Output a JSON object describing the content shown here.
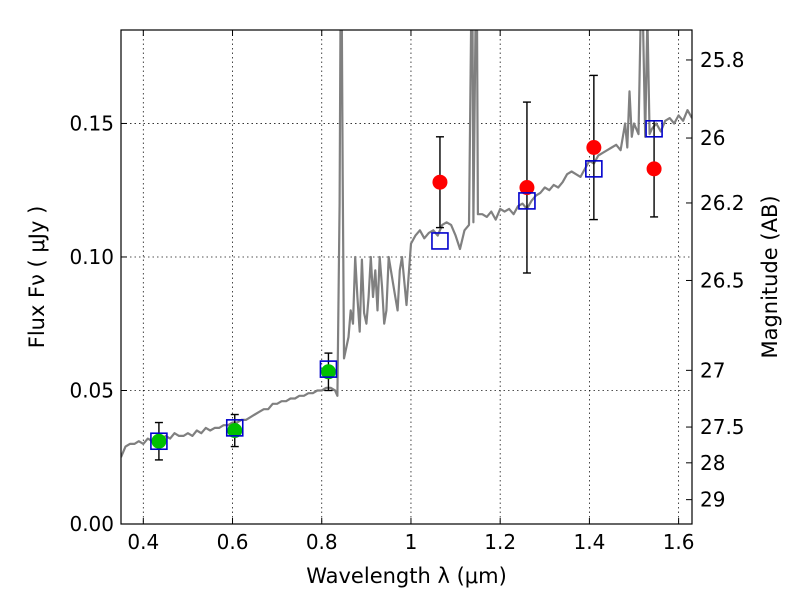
{
  "chart_data": {
    "type": "scatter",
    "xlabel": "Wavelength  λ (μm)",
    "ylabel": "Flux  Fν  ( μJy )",
    "ylabel2": "Magnitude (AB)",
    "xlim": [
      0.35,
      1.63
    ],
    "ylim": [
      0.0,
      0.185
    ],
    "grid": true,
    "x_ticks": [
      {
        "value": 0.4,
        "label": "0.4"
      },
      {
        "value": 0.6,
        "label": "0.6"
      },
      {
        "value": 0.8,
        "label": "0.8"
      },
      {
        "value": 1.0,
        "label": "1"
      },
      {
        "value": 1.2,
        "label": "1.2"
      },
      {
        "value": 1.4,
        "label": "1.4"
      },
      {
        "value": 1.6,
        "label": "1.6"
      }
    ],
    "y_ticks": [
      {
        "value": 0.0,
        "label": "0.00"
      },
      {
        "value": 0.05,
        "label": "0.05"
      },
      {
        "value": 0.1,
        "label": "0.10"
      },
      {
        "value": 0.15,
        "label": "0.15"
      }
    ],
    "mag_ticks": [
      {
        "value": 25.8,
        "label": "25.8"
      },
      {
        "value": 26.0,
        "label": "26"
      },
      {
        "value": 26.2,
        "label": "26.2"
      },
      {
        "value": 26.5,
        "label": "26.5"
      },
      {
        "value": 27.0,
        "label": "27"
      },
      {
        "value": 27.5,
        "label": "27.5"
      },
      {
        "value": 28.0,
        "label": "28"
      },
      {
        "value": 29.0,
        "label": "29"
      }
    ],
    "series": [
      {
        "kind": "spectrum",
        "color": "#808080",
        "points": [
          [
            0.35,
            0.025
          ],
          [
            0.36,
            0.029
          ],
          [
            0.37,
            0.03
          ],
          [
            0.38,
            0.03
          ],
          [
            0.39,
            0.031
          ],
          [
            0.4,
            0.03
          ],
          [
            0.41,
            0.032
          ],
          [
            0.42,
            0.031
          ],
          [
            0.43,
            0.032
          ],
          [
            0.44,
            0.031
          ],
          [
            0.45,
            0.033
          ],
          [
            0.46,
            0.032
          ],
          [
            0.47,
            0.034
          ],
          [
            0.48,
            0.033
          ],
          [
            0.49,
            0.033
          ],
          [
            0.5,
            0.034
          ],
          [
            0.51,
            0.033
          ],
          [
            0.52,
            0.035
          ],
          [
            0.53,
            0.034
          ],
          [
            0.54,
            0.036
          ],
          [
            0.55,
            0.035
          ],
          [
            0.56,
            0.036
          ],
          [
            0.57,
            0.036
          ],
          [
            0.58,
            0.037
          ],
          [
            0.59,
            0.037
          ],
          [
            0.6,
            0.038
          ],
          [
            0.61,
            0.038
          ],
          [
            0.62,
            0.039
          ],
          [
            0.63,
            0.039
          ],
          [
            0.64,
            0.04
          ],
          [
            0.65,
            0.041
          ],
          [
            0.66,
            0.042
          ],
          [
            0.67,
            0.043
          ],
          [
            0.68,
            0.043
          ],
          [
            0.69,
            0.045
          ],
          [
            0.7,
            0.045
          ],
          [
            0.71,
            0.046
          ],
          [
            0.72,
            0.046
          ],
          [
            0.73,
            0.047
          ],
          [
            0.74,
            0.047
          ],
          [
            0.75,
            0.048
          ],
          [
            0.76,
            0.048
          ],
          [
            0.77,
            0.049
          ],
          [
            0.78,
            0.049
          ],
          [
            0.79,
            0.05
          ],
          [
            0.8,
            0.05
          ],
          [
            0.81,
            0.051
          ],
          [
            0.82,
            0.051
          ],
          [
            0.83,
            0.05
          ],
          [
            0.835,
            0.048
          ],
          [
            0.84,
            0.12
          ],
          [
            0.842,
            0.19
          ],
          [
            0.845,
            0.19
          ],
          [
            0.847,
            0.13
          ],
          [
            0.85,
            0.062
          ],
          [
            0.86,
            0.07
          ],
          [
            0.865,
            0.08
          ],
          [
            0.87,
            0.075
          ],
          [
            0.875,
            0.1
          ],
          [
            0.88,
            0.085
          ],
          [
            0.885,
            0.072
          ],
          [
            0.89,
            0.099
          ],
          [
            0.895,
            0.079
          ],
          [
            0.9,
            0.075
          ],
          [
            0.905,
            0.085
          ],
          [
            0.91,
            0.1
          ],
          [
            0.915,
            0.085
          ],
          [
            0.92,
            0.095
          ],
          [
            0.925,
            0.08
          ],
          [
            0.93,
            0.1
          ],
          [
            0.935,
            0.089
          ],
          [
            0.94,
            0.075
          ],
          [
            0.945,
            0.08
          ],
          [
            0.95,
            0.1
          ],
          [
            0.955,
            0.095
          ],
          [
            0.96,
            0.09
          ],
          [
            0.965,
            0.085
          ],
          [
            0.97,
            0.08
          ],
          [
            0.975,
            0.095
          ],
          [
            0.98,
            0.1
          ],
          [
            0.99,
            0.082
          ],
          [
            1.0,
            0.105
          ],
          [
            1.01,
            0.108
          ],
          [
            1.02,
            0.11
          ],
          [
            1.03,
            0.107
          ],
          [
            1.04,
            0.109
          ],
          [
            1.05,
            0.11
          ],
          [
            1.06,
            0.108
          ],
          [
            1.07,
            0.112
          ],
          [
            1.08,
            0.113
          ],
          [
            1.09,
            0.112
          ],
          [
            1.1,
            0.108
          ],
          [
            1.11,
            0.103
          ],
          [
            1.12,
            0.11
          ],
          [
            1.13,
            0.112
          ],
          [
            1.135,
            0.19
          ],
          [
            1.138,
            0.19
          ],
          [
            1.14,
            0.113
          ],
          [
            1.145,
            0.19
          ],
          [
            1.148,
            0.19
          ],
          [
            1.15,
            0.116
          ],
          [
            1.16,
            0.116
          ],
          [
            1.17,
            0.115
          ],
          [
            1.18,
            0.117
          ],
          [
            1.19,
            0.114
          ],
          [
            1.2,
            0.118
          ],
          [
            1.21,
            0.117
          ],
          [
            1.22,
            0.118
          ],
          [
            1.23,
            0.116
          ],
          [
            1.24,
            0.119
          ],
          [
            1.25,
            0.12
          ],
          [
            1.26,
            0.118
          ],
          [
            1.27,
            0.121
          ],
          [
            1.28,
            0.123
          ],
          [
            1.29,
            0.124
          ],
          [
            1.3,
            0.126
          ],
          [
            1.31,
            0.125
          ],
          [
            1.32,
            0.127
          ],
          [
            1.33,
            0.126
          ],
          [
            1.34,
            0.128
          ],
          [
            1.35,
            0.131
          ],
          [
            1.36,
            0.132
          ],
          [
            1.37,
            0.131
          ],
          [
            1.38,
            0.13
          ],
          [
            1.39,
            0.133
          ],
          [
            1.4,
            0.136
          ],
          [
            1.41,
            0.135
          ],
          [
            1.42,
            0.138
          ],
          [
            1.43,
            0.139
          ],
          [
            1.44,
            0.14
          ],
          [
            1.45,
            0.141
          ],
          [
            1.46,
            0.142
          ],
          [
            1.47,
            0.14
          ],
          [
            1.48,
            0.15
          ],
          [
            1.485,
            0.141
          ],
          [
            1.49,
            0.162
          ],
          [
            1.495,
            0.145
          ],
          [
            1.5,
            0.15
          ],
          [
            1.51,
            0.146
          ],
          [
            1.515,
            0.19
          ],
          [
            1.52,
            0.19
          ],
          [
            1.525,
            0.145
          ],
          [
            1.53,
            0.19
          ],
          [
            1.535,
            0.146
          ],
          [
            1.54,
            0.148
          ],
          [
            1.55,
            0.15
          ],
          [
            1.56,
            0.147
          ],
          [
            1.57,
            0.151
          ],
          [
            1.58,
            0.152
          ],
          [
            1.59,
            0.15
          ],
          [
            1.6,
            0.153
          ],
          [
            1.61,
            0.151
          ],
          [
            1.62,
            0.155
          ],
          [
            1.63,
            0.152
          ]
        ]
      },
      {
        "kind": "model-squares",
        "color": "#0000cc",
        "points": [
          [
            0.435,
            0.031
          ],
          [
            0.605,
            0.036
          ],
          [
            0.815,
            0.058
          ],
          [
            1.065,
            0.106
          ],
          [
            1.26,
            0.121
          ],
          [
            1.41,
            0.133
          ],
          [
            1.545,
            0.148
          ]
        ]
      },
      {
        "kind": "green-points",
        "color": "#00c000",
        "points": [
          [
            0.435,
            0.031,
            0.007
          ],
          [
            0.605,
            0.035,
            0.006
          ],
          [
            0.815,
            0.057,
            0.007
          ]
        ]
      },
      {
        "kind": "red-points",
        "color": "#ff0000",
        "points": [
          [
            1.065,
            0.128,
            0.017
          ],
          [
            1.26,
            0.126,
            0.032
          ],
          [
            1.41,
            0.141,
            0.027
          ],
          [
            1.545,
            0.133,
            0.018
          ]
        ]
      }
    ]
  }
}
